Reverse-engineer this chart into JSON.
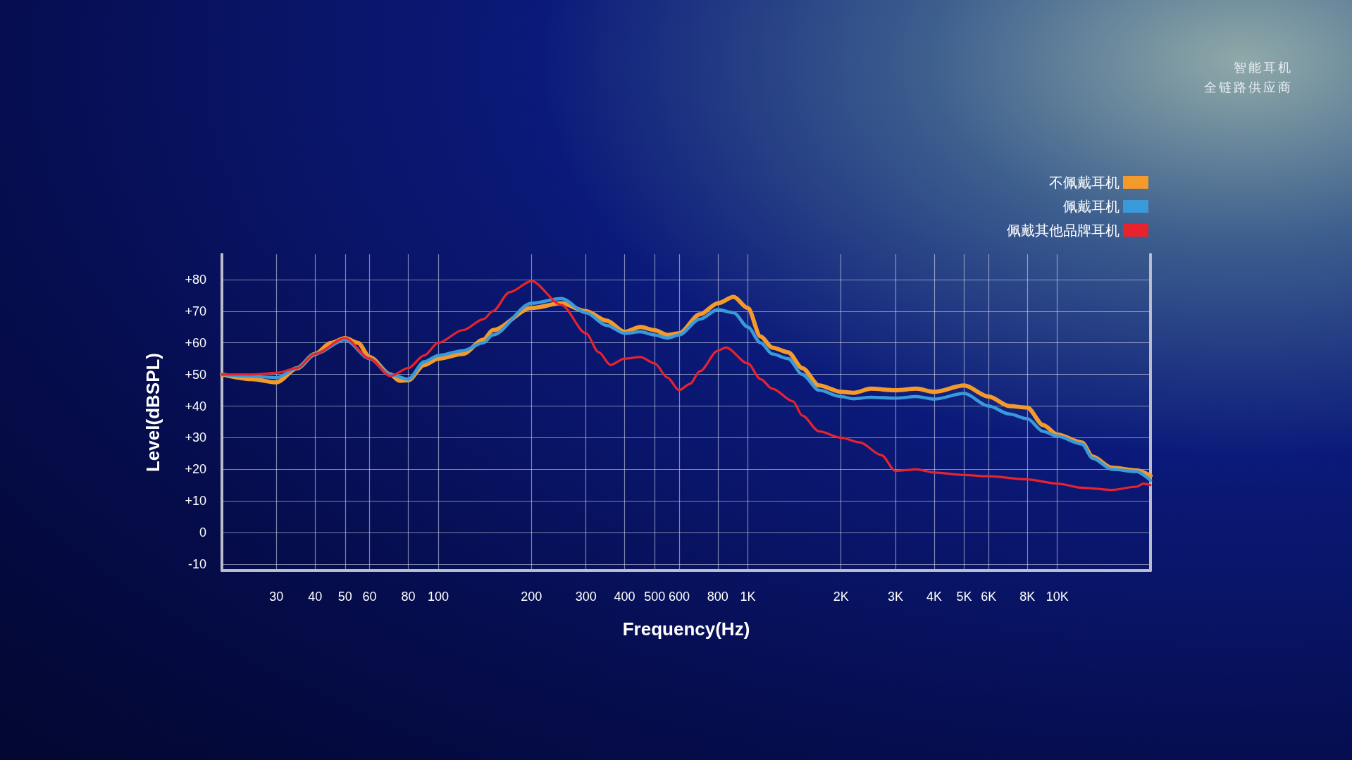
{
  "chart_data": {
    "type": "line",
    "xlabel": "Frequency(Hz)",
    "ylabel": "Level(dBSPL)",
    "log": "x",
    "annotations": [
      "智能耳机",
      "全链路供应商"
    ],
    "xlim": [
      20,
      20000
    ],
    "xticks": [
      30,
      40,
      50,
      60,
      80,
      100,
      200,
      300,
      400,
      500,
      600,
      800,
      {
        "value": 1000,
        "label": "1K"
      },
      {
        "value": 2000,
        "label": "2K"
      },
      {
        "value": 3000,
        "label": "3K"
      },
      {
        "value": 4000,
        "label": "4K"
      },
      {
        "value": 5000,
        "label": "5K"
      },
      {
        "value": 6000,
        "label": "6K"
      },
      {
        "value": 8000,
        "label": "8K"
      },
      {
        "value": 10000,
        "label": "10K"
      }
    ],
    "ylim": [
      -12,
      88
    ],
    "yticks": [
      -10,
      0,
      {
        "value": 10,
        "label": "+10"
      },
      {
        "value": 20,
        "label": "+20"
      },
      {
        "value": 30,
        "label": "+30"
      },
      {
        "value": 40,
        "label": "+40"
      },
      {
        "value": 50,
        "label": "+50"
      },
      {
        "value": 60,
        "label": "+60"
      },
      {
        "value": 70,
        "label": "+70"
      },
      {
        "value": 80,
        "label": "+80"
      }
    ],
    "grid": true,
    "legend": "top right",
    "line_style": "solid",
    "series": [
      {
        "name": "不佩戴耳机",
        "color": "#f39a2a",
        "x": [
          20,
          25,
          30,
          35,
          40,
          45,
          50,
          55,
          60,
          70,
          75,
          80,
          90,
          100,
          120,
          140,
          150,
          200,
          250,
          300,
          350,
          400,
          450,
          500,
          550,
          600,
          700,
          800,
          900,
          1000,
          1100,
          1200,
          1350,
          1500,
          1700,
          2000,
          2200,
          2500,
          3000,
          3500,
          4000,
          5000,
          6000,
          7000,
          8000,
          9000,
          10000,
          12000,
          13000,
          15000,
          18000,
          20000
        ],
        "values": [
          50,
          48.5,
          47.5,
          52,
          56.5,
          60,
          61.5,
          60,
          55.5,
          50,
          48,
          48.2,
          53,
          55,
          56.5,
          61,
          64,
          71,
          72.5,
          70,
          67,
          63.5,
          65,
          64,
          62.5,
          63,
          69,
          72.5,
          74.5,
          71,
          62,
          58.5,
          57,
          52,
          46.5,
          44.5,
          44.2,
          45.5,
          45,
          45.5,
          44.5,
          46.5,
          43,
          40,
          39.5,
          34,
          31,
          28.5,
          24,
          20.5,
          19.7,
          18
        ]
      },
      {
        "name": "佩戴耳机",
        "color": "#3a9ad9",
        "x": [
          20,
          25,
          30,
          35,
          40,
          50,
          60,
          70,
          80,
          90,
          100,
          120,
          140,
          150,
          200,
          250,
          300,
          350,
          400,
          450,
          500,
          550,
          600,
          700,
          800,
          900,
          1000,
          1100,
          1200,
          1350,
          1500,
          1700,
          2000,
          2200,
          2500,
          3000,
          3500,
          4000,
          5000,
          6000,
          7000,
          8000,
          9000,
          10000,
          12000,
          13000,
          15000,
          18000,
          20000
        ],
        "values": [
          50,
          49.5,
          49,
          52,
          56.5,
          61,
          55,
          50,
          48.5,
          54,
          56,
          57.5,
          60,
          62.5,
          72.5,
          74,
          69.5,
          65.5,
          63,
          63.5,
          62.5,
          61.5,
          62.5,
          67.5,
          70.5,
          69.5,
          65,
          60,
          56.5,
          55,
          50,
          45,
          43,
          42.3,
          42.8,
          42.5,
          43,
          42.2,
          44,
          40,
          37.5,
          36,
          32,
          30.5,
          28,
          23.5,
          20,
          19.3,
          16.5
        ]
      },
      {
        "name": "佩戴其他品牌耳机",
        "color": "#e8232e",
        "x": [
          20,
          25,
          30,
          35,
          40,
          50,
          60,
          70,
          80,
          90,
          100,
          120,
          140,
          150,
          170,
          200,
          250,
          300,
          330,
          360,
          400,
          450,
          500,
          550,
          600,
          650,
          700,
          800,
          850,
          1000,
          1100,
          1200,
          1400,
          1500,
          1700,
          2000,
          2300,
          2700,
          3000,
          3500,
          4000,
          5000,
          6000,
          8000,
          10000,
          12000,
          15000,
          18000,
          19000,
          20000
        ],
        "values": [
          50,
          50,
          50.5,
          52,
          56.5,
          61.5,
          55,
          49.5,
          52,
          56,
          60,
          64,
          67.5,
          70,
          76,
          79.5,
          72,
          63,
          57,
          53,
          55,
          55.5,
          53.5,
          49,
          45,
          47,
          51,
          57.5,
          58.5,
          53.5,
          48.5,
          45.5,
          41.5,
          37,
          32,
          30,
          28.5,
          24.5,
          19.5,
          20,
          19,
          18.2,
          17.8,
          16.8,
          15.5,
          14.2,
          13.5,
          14.5,
          15.5,
          15
        ]
      }
    ]
  }
}
